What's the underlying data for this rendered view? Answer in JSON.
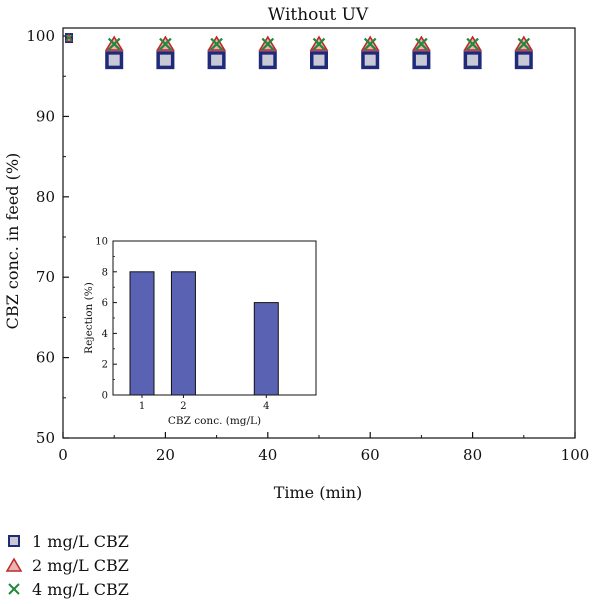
{
  "chart_data": [
    {
      "type": "scatter",
      "title": "Without UV",
      "xlabel": "Time (min)",
      "ylabel": "CBZ conc. in feed (%)",
      "xlim": [
        0,
        100
      ],
      "ylim": [
        50,
        101
      ],
      "x_ticks": [
        "0",
        "20",
        "40",
        "60",
        "80",
        "100"
      ],
      "y_ticks": [
        "50",
        "60",
        "70",
        "80",
        "90",
        "100"
      ],
      "grid": false,
      "legend_position": "bottom-left, below plot",
      "series": [
        {
          "name": "1 mg/L CBZ",
          "marker": "square",
          "color": "#1f2a7a",
          "fill": "#c9c9d6",
          "x": [
            0,
            10,
            20,
            30,
            40,
            50,
            60,
            70,
            80,
            90
          ],
          "y": [
            100,
            97,
            97,
            97,
            97,
            97,
            97,
            97,
            97,
            97
          ]
        },
        {
          "name": "2 mg/L CBZ",
          "marker": "triangle",
          "color": "#c0282b",
          "fill": "#e8b4b4",
          "x": [
            0,
            10,
            20,
            30,
            40,
            50,
            60,
            70,
            80,
            90
          ],
          "y": [
            100,
            99,
            99,
            99,
            99,
            99,
            99,
            99,
            99,
            99
          ]
        },
        {
          "name": "4 mg/L CBZ",
          "marker": "x",
          "color": "#1e8a3a",
          "fill": "none",
          "x": [
            0,
            10,
            20,
            30,
            40,
            50,
            60,
            70,
            80,
            90
          ],
          "y": [
            100,
            99,
            99,
            99,
            99,
            99,
            99,
            99,
            99,
            99
          ]
        }
      ]
    },
    {
      "type": "bar",
      "title": "",
      "xlabel": "CBZ conc. (mg/L)",
      "ylabel": "Rejection (%)",
      "categories": [
        "1",
        "2",
        "4"
      ],
      "x": [
        1,
        2,
        4
      ],
      "values": [
        8,
        8,
        6
      ],
      "xlim": [
        0.3,
        5.2
      ],
      "ylim": [
        0,
        10
      ],
      "y_ticks": [
        "0",
        "2",
        "4",
        "6",
        "8",
        "10"
      ],
      "bar_color": "#5a62b4",
      "grid": false
    }
  ]
}
